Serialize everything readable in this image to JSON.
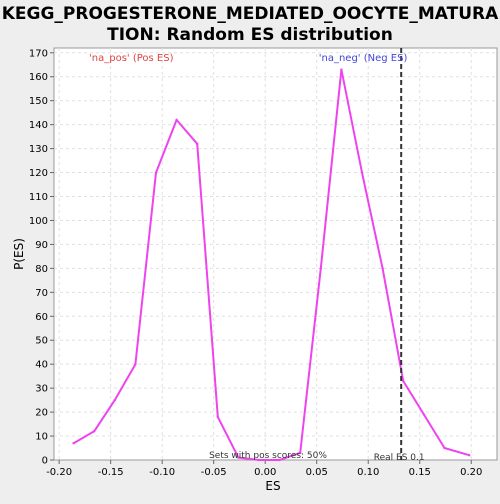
{
  "chart_data": {
    "type": "line",
    "title_lines": [
      "KEGG_PROGESTERONE_MEDIATED_OOCYTE_MATURA",
      "TION: Random ES distribution"
    ],
    "xlabel": "ES",
    "ylabel": "P(ES)",
    "xlim": [
      -0.205,
      0.225
    ],
    "ylim": [
      0,
      172
    ],
    "x_ticks": [
      -0.2,
      -0.15,
      -0.1,
      -0.05,
      0.0,
      0.05,
      0.1,
      0.15,
      0.2
    ],
    "x_tick_labels": [
      "-0.20",
      "-0.15",
      "-0.10",
      "-0.05",
      "0.00",
      "0.05",
      "0.10",
      "0.15",
      "0.20"
    ],
    "y_ticks": [
      0,
      10,
      20,
      30,
      40,
      50,
      60,
      70,
      80,
      90,
      100,
      110,
      120,
      130,
      140,
      150,
      160,
      170
    ],
    "y_tick_labels": [
      "0",
      "10",
      "20",
      "30",
      "40",
      "50",
      "60",
      "70",
      "80",
      "90",
      "100",
      "110",
      "120",
      "130",
      "140",
      "150",
      "160",
      "170"
    ],
    "grid": true,
    "series": [
      {
        "color": "#ee44ee",
        "x": [
          -0.186,
          -0.166,
          -0.146,
          -0.126,
          -0.106,
          -0.086,
          -0.066,
          -0.046,
          -0.026,
          -0.006,
          0.014,
          0.034,
          0.054,
          0.074,
          0.094,
          0.114,
          0.134,
          0.154,
          0.174,
          0.198
        ],
        "y": [
          7,
          12,
          25,
          40,
          120,
          142,
          132,
          18,
          1,
          0,
          0,
          3,
          80,
          163,
          120,
          80,
          33,
          19,
          5,
          2
        ]
      }
    ],
    "annotations": [
      {
        "text": "'na_pos' (Pos ES)",
        "x": -0.13,
        "color": "#dd4444"
      },
      {
        "text": "'na_neg' (Neg ES)",
        "x": 0.095,
        "color": "#4444dd"
      }
    ],
    "real_es": {
      "value": 0.132,
      "label": "Real ES 0.1"
    },
    "footer_text": "Sets with pos scores: 50%"
  }
}
